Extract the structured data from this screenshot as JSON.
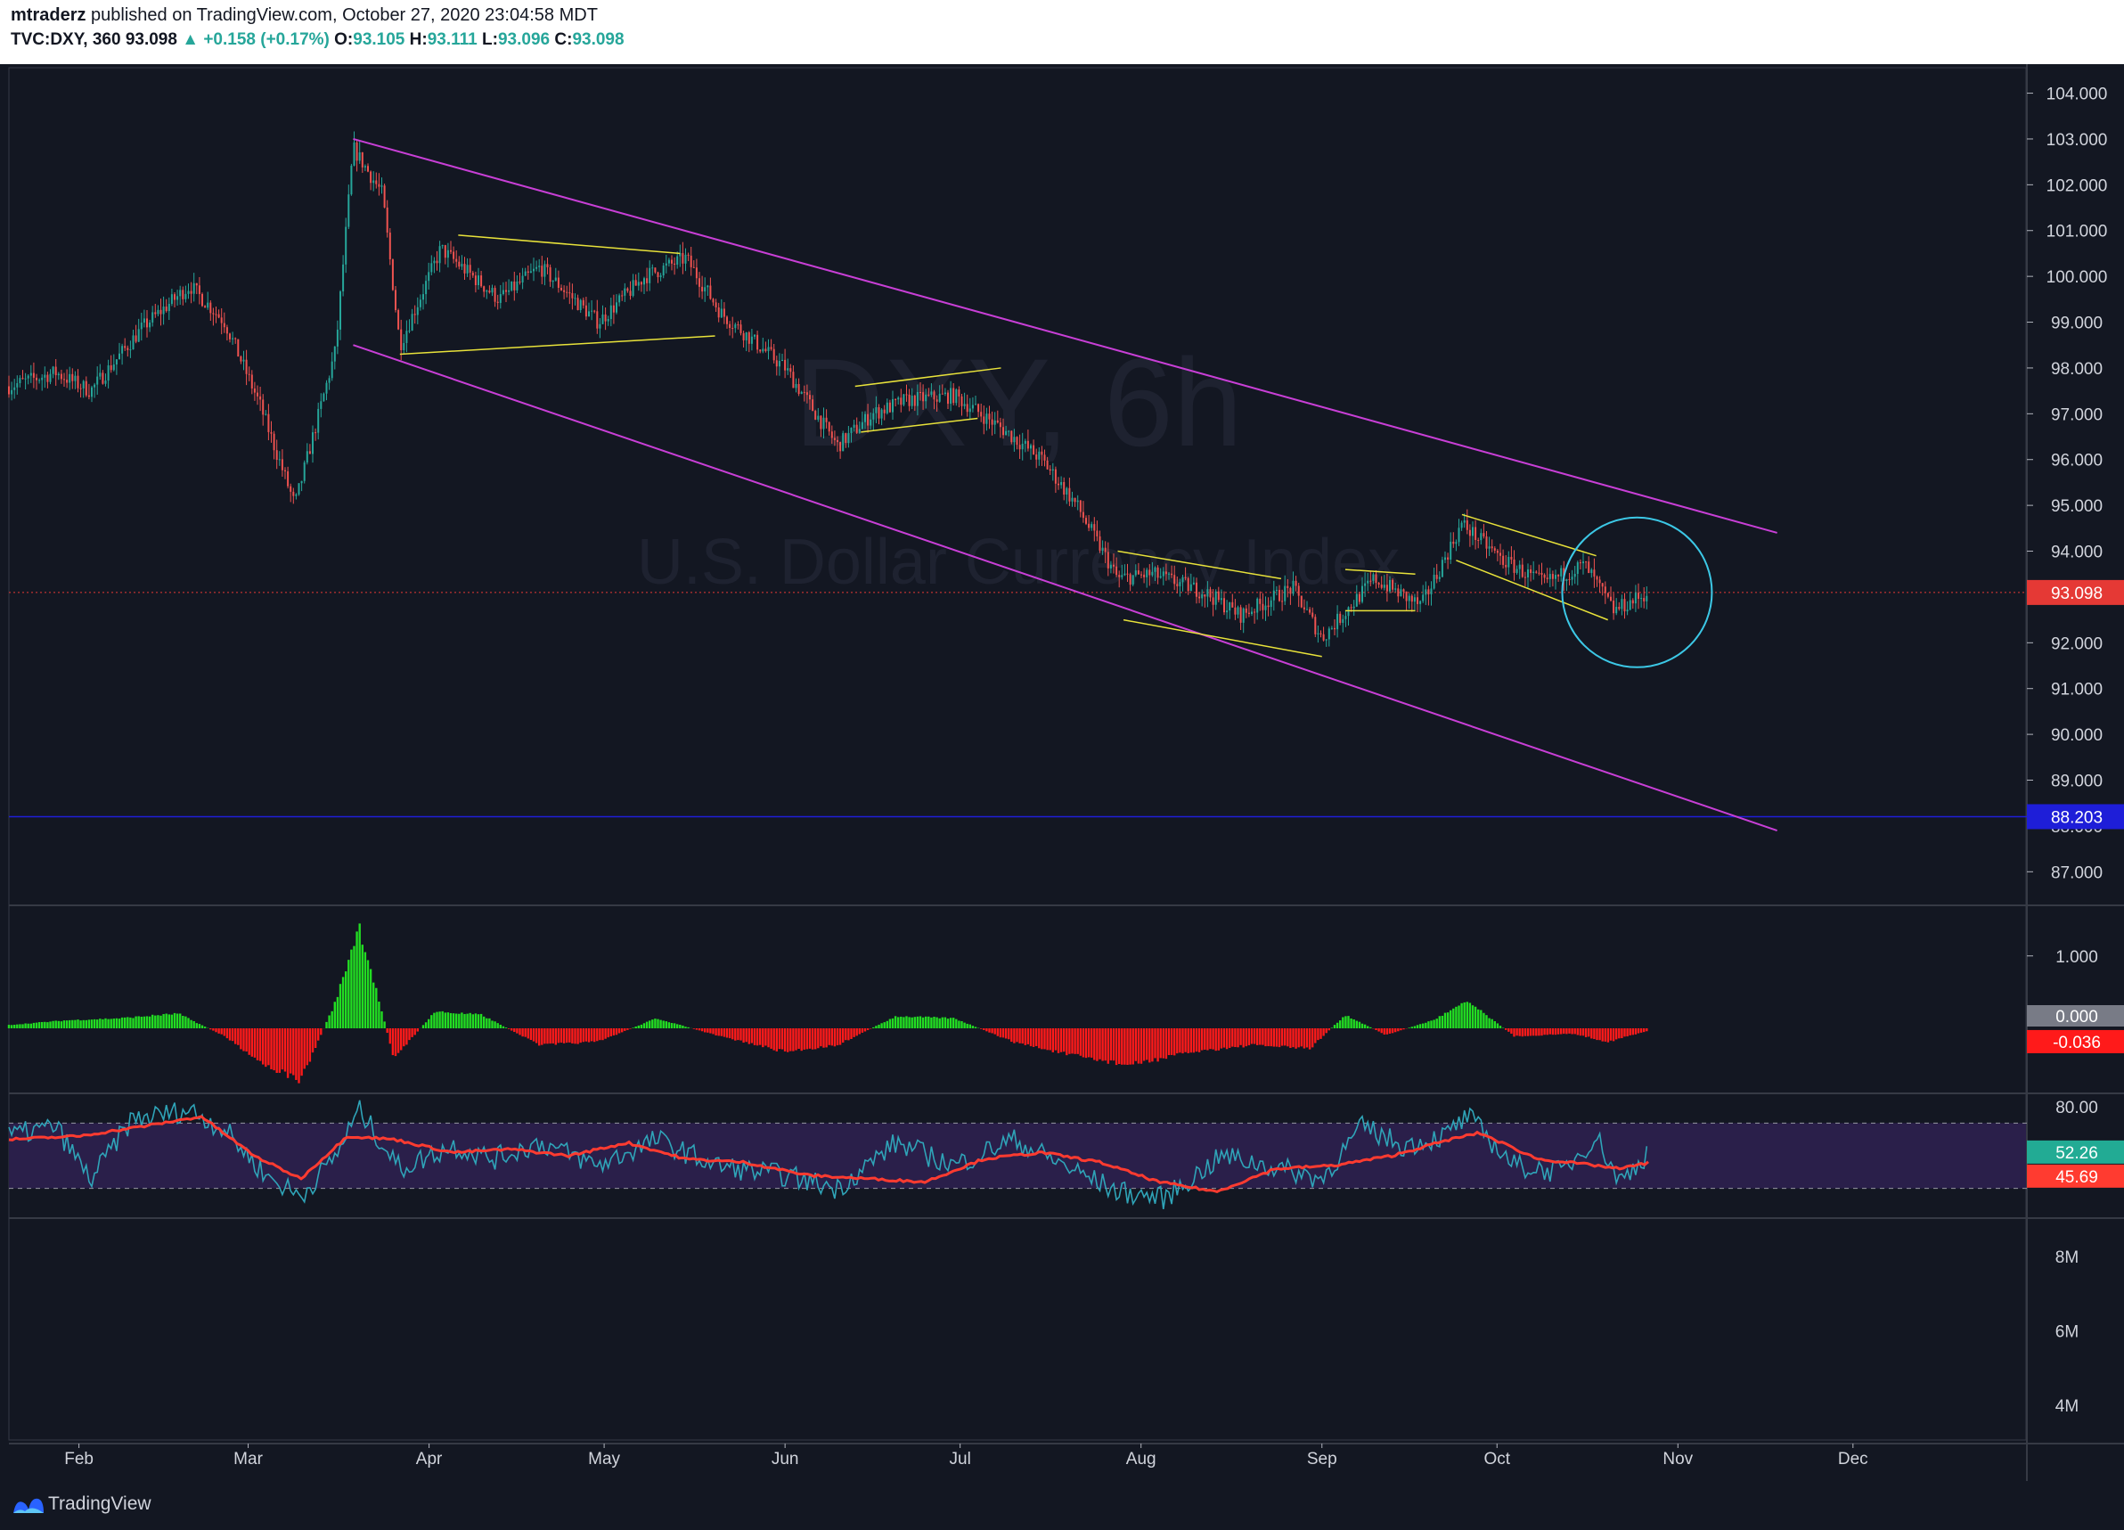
{
  "header": {
    "author": "mtraderz",
    "published": "published on TradingView.com, October 27, 2020 23:04:58 MDT",
    "symbol": "TVC:DXY, 360",
    "last": "93.098",
    "change": "▲ +0.158 (+0.17%)",
    "o_label": "O:",
    "o": "93.105",
    "h_label": "H:",
    "h": "93.111",
    "l_label": "L:",
    "l": "93.096",
    "c_label": "C:",
    "c": "93.098"
  },
  "watermark": {
    "symbol": "DXY, 6h",
    "name": "U.S. Dollar Currency Index"
  },
  "footer": {
    "brand": "TradingView"
  },
  "colors": {
    "background": "#131722",
    "up": "#26a69a",
    "down": "#ef5350",
    "channel": "#c83fd6",
    "pattern": "#e8e23a",
    "circle": "#3cc8e6",
    "osc_up": "#22dd22",
    "osc_down": "#ff1a1a",
    "rsi": "#2fa4b8",
    "rsi_ma": "#ff3b30",
    "rsi_band": "#2a1f4a",
    "last_price": "#e53935",
    "level": "#1e1ed8"
  },
  "chart_data": [
    {
      "type": "candlestick",
      "title": "DXY, 6h",
      "subtitle": "U.S. Dollar Currency Index",
      "x_axis": [
        "Feb",
        "Mar",
        "Apr",
        "May",
        "Jun",
        "Jul",
        "Aug",
        "Sep",
        "Oct",
        "Nov",
        "Dec"
      ],
      "y_ticks": [
        "104.000",
        "103.000",
        "102.000",
        "101.000",
        "100.000",
        "99.000",
        "98.000",
        "97.000",
        "96.000",
        "95.000",
        "94.000",
        "92.000",
        "91.000",
        "90.000",
        "89.000",
        "88.000",
        "87.000"
      ],
      "ylim": [
        86.5,
        104.4
      ],
      "last_price": "93.098",
      "level_marker": "88.203",
      "path_dates": [
        "2020-01-20",
        "2020-01-28",
        "2020-02-03",
        "2020-02-12",
        "2020-02-20",
        "2020-02-26",
        "2020-03-03",
        "2020-03-09",
        "2020-03-16",
        "2020-03-19",
        "2020-03-24",
        "2020-03-27",
        "2020-04-03",
        "2020-04-13",
        "2020-04-20",
        "2020-04-30",
        "2020-05-08",
        "2020-05-15",
        "2020-05-21",
        "2020-06-01",
        "2020-06-10",
        "2020-06-16",
        "2020-06-22",
        "2020-06-30",
        "2020-07-09",
        "2020-07-15",
        "2020-07-21",
        "2020-07-28",
        "2020-08-03",
        "2020-08-12",
        "2020-08-18",
        "2020-08-27",
        "2020-09-01",
        "2020-09-10",
        "2020-09-18",
        "2020-09-25",
        "2020-10-02",
        "2020-10-09",
        "2020-10-16",
        "2020-10-21",
        "2020-10-27"
      ],
      "path_values": [
        97.6,
        97.9,
        97.5,
        98.9,
        99.8,
        99.0,
        97.2,
        95.0,
        98.4,
        102.8,
        101.8,
        98.5,
        100.6,
        99.5,
        100.2,
        99.0,
        100.0,
        100.4,
        99.2,
        98.0,
        96.3,
        97.0,
        97.3,
        97.4,
        96.6,
        96.0,
        95.0,
        93.4,
        93.5,
        93.1,
        92.6,
        93.2,
        92.1,
        93.4,
        92.8,
        94.6,
        93.8,
        93.3,
        93.7,
        92.7,
        93.1
      ],
      "annotations": {
        "channel_upper": [
          [
            "2020-03-19",
            103.0
          ],
          [
            "2020-11-18",
            94.4
          ]
        ],
        "channel_lower": [
          [
            "2020-03-19",
            98.5
          ],
          [
            "2020-11-18",
            87.9
          ]
        ],
        "patterns": [
          [
            [
              "2020-04-06",
              100.9
            ],
            [
              "2020-05-14",
              100.5
            ]
          ],
          [
            [
              "2020-03-27",
              98.3
            ],
            [
              "2020-05-20",
              98.7
            ]
          ],
          [
            [
              "2020-06-14",
              96.6
            ],
            [
              "2020-07-04",
              96.9
            ]
          ],
          [
            [
              "2020-06-13",
              97.6
            ],
            [
              "2020-07-08",
              98.0
            ]
          ],
          [
            [
              "2020-07-28",
              94.0
            ],
            [
              "2020-08-25",
              93.4
            ]
          ],
          [
            [
              "2020-07-29",
              92.5
            ],
            [
              "2020-09-01",
              91.7
            ]
          ],
          [
            [
              "2020-09-05",
              93.6
            ],
            [
              "2020-09-17",
              93.5
            ]
          ],
          [
            [
              "2020-09-05",
              92.7
            ],
            [
              "2020-09-17",
              92.7
            ]
          ],
          [
            [
              "2020-09-25",
              94.8
            ],
            [
              "2020-10-18",
              93.9
            ]
          ],
          [
            [
              "2020-09-24",
              93.8
            ],
            [
              "2020-10-20",
              92.5
            ]
          ]
        ],
        "circle_center": [
          "2020-10-25",
          93.1
        ]
      }
    },
    {
      "type": "histogram",
      "y_ticks": [
        "1.000"
      ],
      "zero_label": "0.000",
      "last_value": "-0.036",
      "ylim": [
        -0.8,
        1.6
      ],
      "path_dates": [
        "2020-01-20",
        "2020-01-30",
        "2020-02-08",
        "2020-02-18",
        "2020-02-26",
        "2020-03-04",
        "2020-03-10",
        "2020-03-16",
        "2020-03-20",
        "2020-03-26",
        "2020-04-02",
        "2020-04-10",
        "2020-04-20",
        "2020-04-30",
        "2020-05-10",
        "2020-05-20",
        "2020-06-01",
        "2020-06-10",
        "2020-06-20",
        "2020-06-30",
        "2020-07-10",
        "2020-07-20",
        "2020-07-30",
        "2020-08-10",
        "2020-08-20",
        "2020-08-30",
        "2020-09-05",
        "2020-09-12",
        "2020-09-20",
        "2020-09-26",
        "2020-10-04",
        "2020-10-14",
        "2020-10-20",
        "2020-10-27"
      ],
      "path_values": [
        0.05,
        0.12,
        0.15,
        0.22,
        -0.12,
        -0.55,
        -0.78,
        0.4,
        1.55,
        -0.45,
        0.25,
        0.2,
        -0.25,
        -0.2,
        0.15,
        -0.1,
        -0.35,
        -0.25,
        0.18,
        0.15,
        -0.2,
        -0.4,
        -0.55,
        -0.35,
        -0.25,
        -0.3,
        0.2,
        -0.1,
        0.12,
        0.4,
        -0.12,
        -0.08,
        -0.2,
        -0.036
      ]
    },
    {
      "type": "line",
      "y_ticks": [
        "80.00"
      ],
      "band": [
        30,
        70
      ],
      "ylim": [
        14,
        86
      ],
      "series": [
        {
          "name": "",
          "last": "52.26",
          "path_dates": [
            "2020-01-20",
            "2020-01-28",
            "2020-02-03",
            "2020-02-10",
            "2020-02-20",
            "2020-02-26",
            "2020-03-04",
            "2020-03-10",
            "2020-03-16",
            "2020-03-20",
            "2020-03-27",
            "2020-04-05",
            "2020-04-12",
            "2020-04-20",
            "2020-04-30",
            "2020-05-10",
            "2020-05-20",
            "2020-06-01",
            "2020-06-10",
            "2020-06-20",
            "2020-06-30",
            "2020-07-10",
            "2020-07-20",
            "2020-07-28",
            "2020-08-05",
            "2020-08-15",
            "2020-08-25",
            "2020-09-01",
            "2020-09-08",
            "2020-09-15",
            "2020-09-22",
            "2020-09-26",
            "2020-10-04",
            "2020-10-12",
            "2020-10-18",
            "2020-10-22",
            "2020-10-27"
          ],
          "path_values": [
            62,
            68,
            35,
            72,
            78,
            66,
            38,
            25,
            50,
            78,
            42,
            56,
            48,
            58,
            44,
            60,
            44,
            38,
            30,
            58,
            44,
            60,
            42,
            28,
            24,
            50,
            42,
            36,
            68,
            56,
            62,
            74,
            44,
            40,
            62,
            34,
            52.26
          ]
        },
        {
          "name": "",
          "last": "45.69",
          "path_dates": [
            "2020-01-20",
            "2020-02-01",
            "2020-02-12",
            "2020-02-22",
            "2020-03-02",
            "2020-03-10",
            "2020-03-18",
            "2020-03-26",
            "2020-04-05",
            "2020-04-15",
            "2020-04-25",
            "2020-05-05",
            "2020-05-15",
            "2020-05-25",
            "2020-06-05",
            "2020-06-15",
            "2020-06-25",
            "2020-07-05",
            "2020-07-15",
            "2020-07-25",
            "2020-08-04",
            "2020-08-14",
            "2020-08-24",
            "2020-09-03",
            "2020-09-13",
            "2020-09-23",
            "2020-09-28",
            "2020-10-08",
            "2020-10-18",
            "2020-10-22",
            "2020-10-27"
          ],
          "path_values": [
            60,
            62,
            68,
            74,
            50,
            36,
            62,
            60,
            52,
            54,
            50,
            58,
            48,
            46,
            38,
            36,
            34,
            48,
            52,
            46,
            34,
            28,
            42,
            44,
            50,
            60,
            64,
            48,
            44,
            42,
            45.69
          ]
        }
      ]
    },
    {
      "type": "axis",
      "y_ticks": [
        "8M",
        "6M",
        "4M"
      ]
    }
  ]
}
